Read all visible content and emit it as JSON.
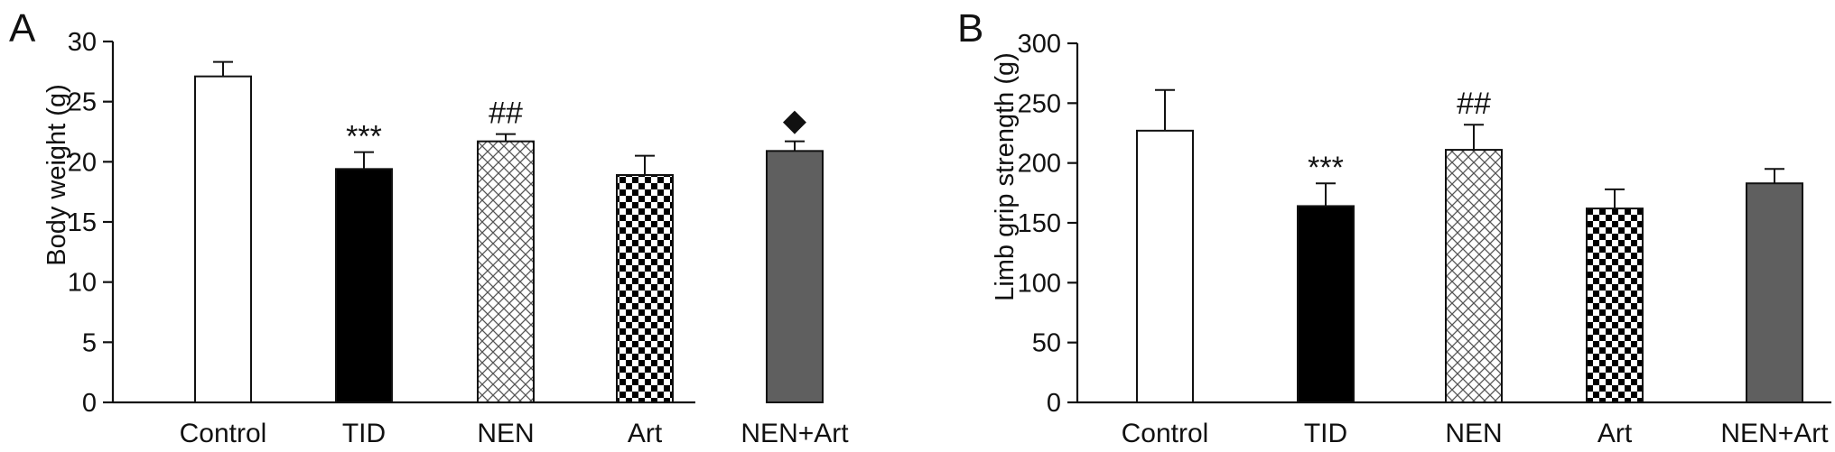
{
  "colors": {
    "black": "#000000",
    "gray": "#5f5f5f",
    "white": "#ffffff"
  },
  "chart_data": [
    {
      "panel": "A",
      "type": "bar",
      "ylabel": "Body weight (g)",
      "ylim": [
        0,
        30
      ],
      "yticks": [
        0,
        5,
        10,
        15,
        20,
        25,
        30
      ],
      "categories": [
        "Control",
        "TID",
        "NEN",
        "Art",
        "NEN+Art"
      ],
      "values": [
        27.1,
        19.4,
        21.7,
        18.9,
        20.9
      ],
      "errors": [
        1.2,
        1.4,
        0.6,
        1.6,
        0.8
      ],
      "fills": [
        "white",
        "black",
        "crosshatch",
        "checker",
        "gray"
      ],
      "annotations": [
        "",
        "***",
        "##",
        "",
        "◆"
      ],
      "grid": false,
      "legend": "none"
    },
    {
      "panel": "B",
      "type": "bar",
      "ylabel": "Limb grip strength (g)",
      "ylim": [
        0,
        300
      ],
      "yticks": [
        0,
        50,
        100,
        150,
        200,
        250,
        300
      ],
      "categories": [
        "Control",
        "TID",
        "NEN",
        "Art",
        "NEN+Art"
      ],
      "values": [
        227,
        164,
        211,
        162,
        183
      ],
      "errors": [
        34,
        19,
        21,
        16,
        12
      ],
      "fills": [
        "white",
        "black",
        "crosshatch",
        "checker",
        "gray"
      ],
      "annotations": [
        "",
        "***",
        "##",
        "",
        ""
      ],
      "grid": false,
      "legend": "none"
    }
  ]
}
